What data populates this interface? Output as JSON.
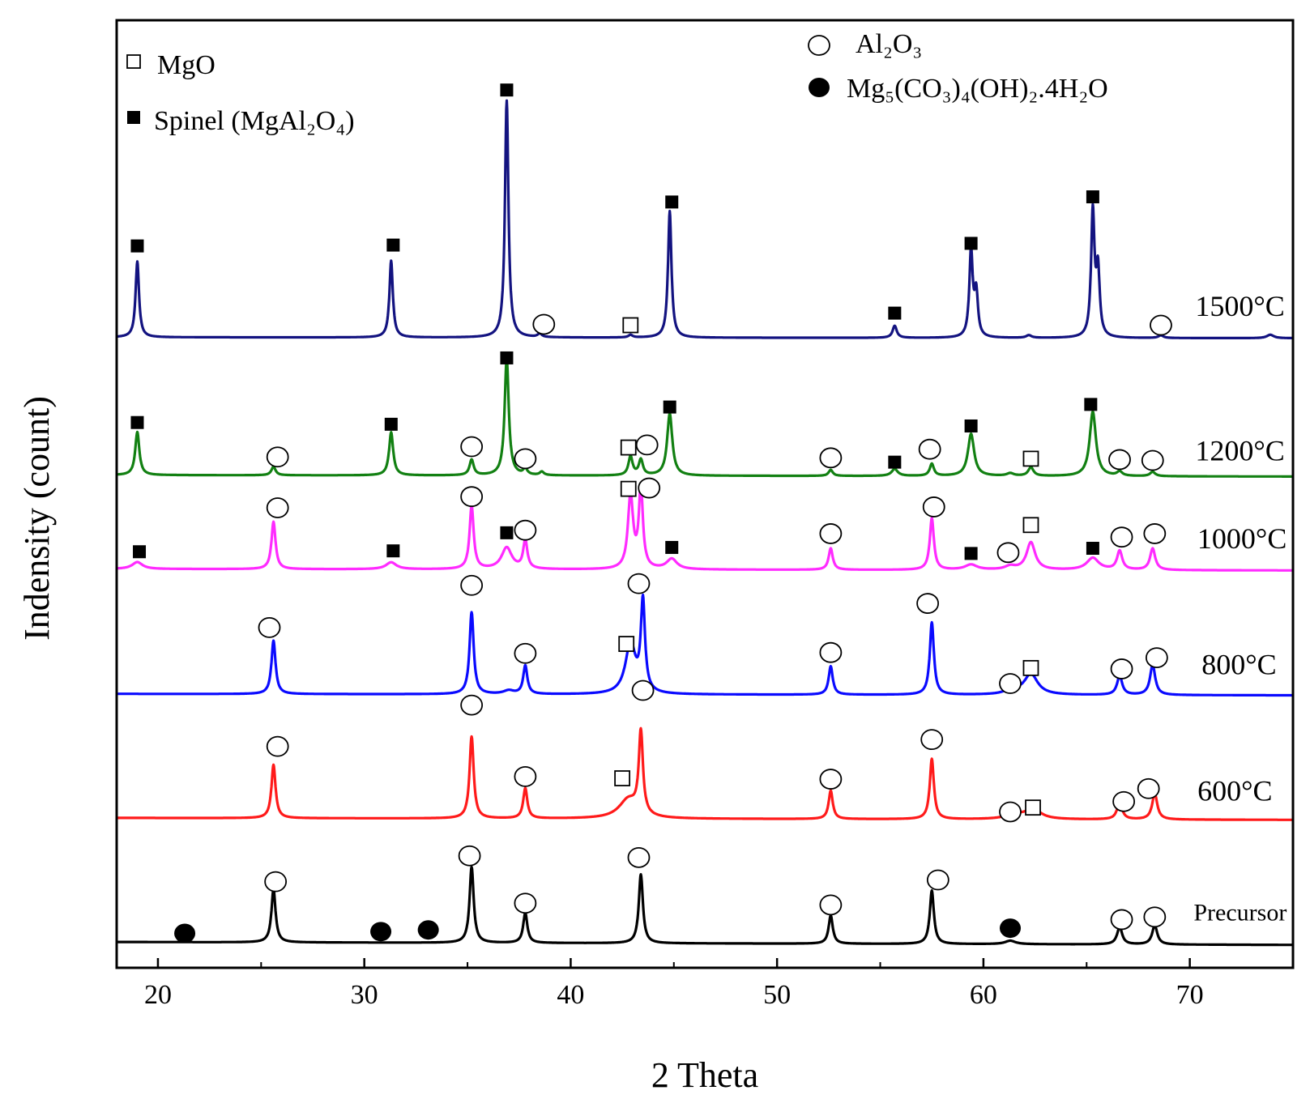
{
  "chart_data": {
    "type": "line",
    "title": "",
    "xlabel": "2 Theta",
    "ylabel": "Indensity (count)",
    "xlim": [
      18,
      75
    ],
    "ylim": [
      0,
      1100
    ],
    "grid": false,
    "x_ticks": [
      {
        "value": 20,
        "label": "20"
      },
      {
        "value": 30,
        "label": "30"
      },
      {
        "value": 40,
        "label": "40"
      },
      {
        "value": 50,
        "label": "50"
      },
      {
        "value": 60,
        "label": "60"
      },
      {
        "value": 70,
        "label": "70"
      }
    ],
    "legend": {
      "placement": "top",
      "items": [
        {
          "marker": "open-square",
          "label": "MgO"
        },
        {
          "marker": "filled-square",
          "label": "Spinel (MgAl₂O₄)"
        },
        {
          "marker": "open-circle",
          "label": "Al₂O₃"
        },
        {
          "marker": "filled-circle",
          "label": "Mg₅(CO₃)₄(OH)₂.4H₂O"
        }
      ]
    },
    "series": [
      {
        "name": "Precursor",
        "color": "#000000",
        "baseline": 30,
        "slope": -0.06,
        "peaks": [
          {
            "x": 25.6,
            "h": 62,
            "w": 0.12
          },
          {
            "x": 35.2,
            "h": 88,
            "w": 0.12
          },
          {
            "x": 37.8,
            "h": 35,
            "w": 0.12
          },
          {
            "x": 43.4,
            "h": 80,
            "w": 0.12
          },
          {
            "x": 52.6,
            "h": 33,
            "w": 0.12
          },
          {
            "x": 57.5,
            "h": 62,
            "w": 0.12
          },
          {
            "x": 66.6,
            "h": 20,
            "w": 0.15
          },
          {
            "x": 68.3,
            "h": 22,
            "w": 0.15
          },
          {
            "x": 61.3,
            "h": 4,
            "w": 0.3
          }
        ],
        "markers": [
          {
            "x": 21.3,
            "y": 40,
            "type": "filled-circle"
          },
          {
            "x": 25.7,
            "y": 100,
            "type": "open-circle"
          },
          {
            "x": 30.8,
            "y": 42,
            "type": "filled-circle"
          },
          {
            "x": 33.1,
            "y": 44,
            "type": "filled-circle"
          },
          {
            "x": 35.1,
            "y": 130,
            "type": "open-circle"
          },
          {
            "x": 37.8,
            "y": 75,
            "type": "open-circle"
          },
          {
            "x": 43.3,
            "y": 128,
            "type": "open-circle"
          },
          {
            "x": 52.6,
            "y": 73,
            "type": "open-circle"
          },
          {
            "x": 57.8,
            "y": 102,
            "type": "open-circle"
          },
          {
            "x": 61.3,
            "y": 46,
            "type": "filled-circle"
          },
          {
            "x": 66.7,
            "y": 56,
            "type": "open-circle"
          },
          {
            "x": 68.3,
            "y": 59,
            "type": "open-circle"
          }
        ],
        "label": "Precursor",
        "label_x": 74.7,
        "label_y": 55,
        "label_size": 30
      },
      {
        "name": "600°C",
        "color": "#ff1a1a",
        "baseline": 174,
        "slope": -0.04,
        "peaks": [
          {
            "x": 25.6,
            "h": 62,
            "w": 0.12
          },
          {
            "x": 35.2,
            "h": 95,
            "w": 0.12
          },
          {
            "x": 37.8,
            "h": 35,
            "w": 0.12
          },
          {
            "x": 42.8,
            "h": 22,
            "w": 0.55
          },
          {
            "x": 43.4,
            "h": 95,
            "w": 0.12
          },
          {
            "x": 52.6,
            "h": 33,
            "w": 0.12
          },
          {
            "x": 57.5,
            "h": 70,
            "w": 0.12
          },
          {
            "x": 61.5,
            "h": 6,
            "w": 0.45
          },
          {
            "x": 62.4,
            "h": 12,
            "w": 0.45
          },
          {
            "x": 66.6,
            "h": 20,
            "w": 0.15
          },
          {
            "x": 68.3,
            "h": 30,
            "w": 0.15
          }
        ],
        "markers": [
          {
            "x": 25.8,
            "y": 257,
            "type": "open-circle"
          },
          {
            "x": 35.2,
            "y": 305,
            "type": "open-circle"
          },
          {
            "x": 37.8,
            "y": 222,
            "type": "open-circle"
          },
          {
            "x": 42.5,
            "y": 220,
            "type": "open-square"
          },
          {
            "x": 43.5,
            "y": 322,
            "type": "open-circle"
          },
          {
            "x": 52.6,
            "y": 219,
            "type": "open-circle"
          },
          {
            "x": 57.5,
            "y": 265,
            "type": "open-circle"
          },
          {
            "x": 61.3,
            "y": 181,
            "type": "open-circle"
          },
          {
            "x": 62.4,
            "y": 186,
            "type": "open-square"
          },
          {
            "x": 66.8,
            "y": 193,
            "type": "open-circle"
          },
          {
            "x": 68.0,
            "y": 208,
            "type": "open-circle"
          }
        ],
        "label": "600°C",
        "label_x": 74.0,
        "label_y": 194,
        "label_size": 36
      },
      {
        "name": "800°C",
        "color": "#0a0aff",
        "baseline": 318,
        "slope": -0.03,
        "peaks": [
          {
            "x": 25.6,
            "h": 62,
            "w": 0.12
          },
          {
            "x": 35.2,
            "h": 95,
            "w": 0.12
          },
          {
            "x": 37.0,
            "h": 4,
            "w": 0.3
          },
          {
            "x": 37.8,
            "h": 33,
            "w": 0.12
          },
          {
            "x": 42.9,
            "h": 58,
            "w": 0.3
          },
          {
            "x": 43.5,
            "h": 104,
            "w": 0.12
          },
          {
            "x": 52.6,
            "h": 33,
            "w": 0.12
          },
          {
            "x": 57.5,
            "h": 84,
            "w": 0.12
          },
          {
            "x": 61.4,
            "h": 6,
            "w": 0.35
          },
          {
            "x": 62.3,
            "h": 24,
            "w": 0.4
          },
          {
            "x": 66.6,
            "h": 22,
            "w": 0.15
          },
          {
            "x": 68.2,
            "h": 35,
            "w": 0.15
          }
        ],
        "markers": [
          {
            "x": 25.4,
            "y": 395,
            "type": "open-circle"
          },
          {
            "x": 35.2,
            "y": 444,
            "type": "open-circle"
          },
          {
            "x": 37.8,
            "y": 365,
            "type": "open-circle"
          },
          {
            "x": 42.7,
            "y": 376,
            "type": "open-square"
          },
          {
            "x": 43.3,
            "y": 446,
            "type": "open-circle"
          },
          {
            "x": 52.6,
            "y": 366,
            "type": "open-circle"
          },
          {
            "x": 57.3,
            "y": 423,
            "type": "open-circle"
          },
          {
            "x": 61.3,
            "y": 330,
            "type": "open-circle"
          },
          {
            "x": 62.3,
            "y": 348,
            "type": "open-square"
          },
          {
            "x": 66.7,
            "y": 347,
            "type": "open-circle"
          },
          {
            "x": 68.4,
            "y": 360,
            "type": "open-circle"
          }
        ],
        "label": "800°C",
        "label_x": 74.2,
        "label_y": 341,
        "label_size": 36
      },
      {
        "name": "1000°C",
        "color": "#ff2bff",
        "baseline": 463,
        "slope": -0.03,
        "peaks": [
          {
            "x": 19.0,
            "h": 8,
            "w": 0.3
          },
          {
            "x": 25.6,
            "h": 55,
            "w": 0.12
          },
          {
            "x": 31.3,
            "h": 8,
            "w": 0.3
          },
          {
            "x": 35.2,
            "h": 73,
            "w": 0.12
          },
          {
            "x": 36.9,
            "h": 25,
            "w": 0.3
          },
          {
            "x": 37.8,
            "h": 33,
            "w": 0.12
          },
          {
            "x": 42.9,
            "h": 85,
            "w": 0.15
          },
          {
            "x": 43.4,
            "h": 92,
            "w": 0.12
          },
          {
            "x": 44.9,
            "h": 12,
            "w": 0.3
          },
          {
            "x": 52.6,
            "h": 25,
            "w": 0.12
          },
          {
            "x": 57.5,
            "h": 60,
            "w": 0.12
          },
          {
            "x": 59.4,
            "h": 6,
            "w": 0.35
          },
          {
            "x": 61.3,
            "h": 4,
            "w": 0.3
          },
          {
            "x": 62.3,
            "h": 32,
            "w": 0.25
          },
          {
            "x": 65.3,
            "h": 14,
            "w": 0.35
          },
          {
            "x": 66.6,
            "h": 22,
            "w": 0.15
          },
          {
            "x": 68.2,
            "h": 25,
            "w": 0.15
          }
        ],
        "markers": [
          {
            "x": 19.1,
            "y": 483,
            "type": "filled-square"
          },
          {
            "x": 25.8,
            "y": 534,
            "type": "open-circle"
          },
          {
            "x": 31.4,
            "y": 484,
            "type": "filled-square"
          },
          {
            "x": 35.2,
            "y": 547,
            "type": "open-circle"
          },
          {
            "x": 36.9,
            "y": 505,
            "type": "filled-square"
          },
          {
            "x": 37.8,
            "y": 508,
            "type": "open-circle"
          },
          {
            "x": 42.8,
            "y": 556,
            "type": "open-square"
          },
          {
            "x": 43.8,
            "y": 557,
            "type": "open-circle"
          },
          {
            "x": 44.9,
            "y": 488,
            "type": "filled-square"
          },
          {
            "x": 52.6,
            "y": 504,
            "type": "open-circle"
          },
          {
            "x": 57.6,
            "y": 535,
            "type": "open-circle"
          },
          {
            "x": 59.4,
            "y": 481,
            "type": "filled-square"
          },
          {
            "x": 61.2,
            "y": 482,
            "type": "open-circle"
          },
          {
            "x": 62.3,
            "y": 514,
            "type": "open-square"
          },
          {
            "x": 65.3,
            "y": 487,
            "type": "filled-square"
          },
          {
            "x": 66.7,
            "y": 500,
            "type": "open-circle"
          },
          {
            "x": 68.3,
            "y": 504,
            "type": "open-circle"
          }
        ],
        "label": "1000°C",
        "label_x": 74.7,
        "label_y": 487,
        "label_size": 36
      },
      {
        "name": "1200°C",
        "color": "#128012",
        "baseline": 572,
        "slope": -0.03,
        "peaks": [
          {
            "x": 19.0,
            "h": 50,
            "w": 0.12
          },
          {
            "x": 25.6,
            "h": 10,
            "w": 0.12
          },
          {
            "x": 31.3,
            "h": 50,
            "w": 0.12
          },
          {
            "x": 35.2,
            "h": 18,
            "w": 0.12
          },
          {
            "x": 36.9,
            "h": 135,
            "w": 0.12
          },
          {
            "x": 37.8,
            "h": 7,
            "w": 0.12
          },
          {
            "x": 38.6,
            "h": 4,
            "w": 0.12
          },
          {
            "x": 42.9,
            "h": 22,
            "w": 0.12
          },
          {
            "x": 43.4,
            "h": 18,
            "w": 0.12
          },
          {
            "x": 44.8,
            "h": 72,
            "w": 0.15
          },
          {
            "x": 52.6,
            "h": 7,
            "w": 0.12
          },
          {
            "x": 55.7,
            "h": 8,
            "w": 0.18
          },
          {
            "x": 57.5,
            "h": 14,
            "w": 0.12
          },
          {
            "x": 59.4,
            "h": 49,
            "w": 0.18
          },
          {
            "x": 61.3,
            "h": 3,
            "w": 0.2
          },
          {
            "x": 62.3,
            "h": 10,
            "w": 0.15
          },
          {
            "x": 65.3,
            "h": 75,
            "w": 0.18
          },
          {
            "x": 66.6,
            "h": 5,
            "w": 0.15
          },
          {
            "x": 68.2,
            "h": 5,
            "w": 0.15
          }
        ],
        "markers": [
          {
            "x": 19.0,
            "y": 633,
            "type": "filled-square"
          },
          {
            "x": 25.8,
            "y": 593,
            "type": "open-circle"
          },
          {
            "x": 31.3,
            "y": 631,
            "type": "filled-square"
          },
          {
            "x": 35.2,
            "y": 605,
            "type": "open-circle"
          },
          {
            "x": 36.9,
            "y": 708,
            "type": "filled-square"
          },
          {
            "x": 37.8,
            "y": 591,
            "type": "open-circle"
          },
          {
            "x": 42.8,
            "y": 604,
            "type": "open-square"
          },
          {
            "x": 43.7,
            "y": 607,
            "type": "open-circle"
          },
          {
            "x": 44.8,
            "y": 651,
            "type": "filled-square"
          },
          {
            "x": 52.6,
            "y": 592,
            "type": "open-circle"
          },
          {
            "x": 55.7,
            "y": 587,
            "type": "filled-square"
          },
          {
            "x": 57.4,
            "y": 602,
            "type": "open-circle"
          },
          {
            "x": 59.4,
            "y": 629,
            "type": "filled-square"
          },
          {
            "x": 62.3,
            "y": 591,
            "type": "open-square"
          },
          {
            "x": 65.2,
            "y": 654,
            "type": "filled-square"
          },
          {
            "x": 66.6,
            "y": 590,
            "type": "open-circle"
          },
          {
            "x": 68.2,
            "y": 589,
            "type": "open-circle"
          }
        ],
        "label": "1200°C",
        "label_x": 74.6,
        "label_y": 589,
        "label_size": 36
      },
      {
        "name": "1500°C",
        "color": "#131380",
        "baseline": 732,
        "slope": -0.02,
        "peaks": [
          {
            "x": 19.0,
            "h": 88,
            "w": 0.1
          },
          {
            "x": 31.3,
            "h": 89,
            "w": 0.1
          },
          {
            "x": 36.9,
            "h": 275,
            "w": 0.1
          },
          {
            "x": 38.5,
            "h": 4,
            "w": 0.12
          },
          {
            "x": 42.9,
            "h": 3,
            "w": 0.12
          },
          {
            "x": 44.8,
            "h": 147,
            "w": 0.1
          },
          {
            "x": 55.7,
            "h": 14,
            "w": 0.12
          },
          {
            "x": 59.4,
            "h": 100,
            "w": 0.1
          },
          {
            "x": 59.65,
            "h": 50,
            "w": 0.1
          },
          {
            "x": 62.2,
            "h": 3,
            "w": 0.15
          },
          {
            "x": 65.3,
            "h": 145,
            "w": 0.1
          },
          {
            "x": 65.55,
            "h": 75,
            "w": 0.1
          },
          {
            "x": 68.6,
            "h": 3,
            "w": 0.15
          },
          {
            "x": 73.9,
            "h": 4,
            "w": 0.2
          }
        ],
        "markers": [
          {
            "x": 19.0,
            "y": 838,
            "type": "filled-square"
          },
          {
            "x": 31.4,
            "y": 839,
            "type": "filled-square"
          },
          {
            "x": 36.9,
            "y": 1019,
            "type": "filled-square"
          },
          {
            "x": 38.7,
            "y": 747,
            "type": "open-circle"
          },
          {
            "x": 42.9,
            "y": 746,
            "type": "open-square"
          },
          {
            "x": 44.9,
            "y": 889,
            "type": "filled-square"
          },
          {
            "x": 55.7,
            "y": 760,
            "type": "filled-square"
          },
          {
            "x": 59.4,
            "y": 841,
            "type": "filled-square"
          },
          {
            "x": 65.3,
            "y": 895,
            "type": "filled-square"
          },
          {
            "x": 68.6,
            "y": 746,
            "type": "open-circle"
          }
        ],
        "label": "1500°C",
        "label_x": 74.6,
        "label_y": 757,
        "label_size": 36
      }
    ]
  }
}
